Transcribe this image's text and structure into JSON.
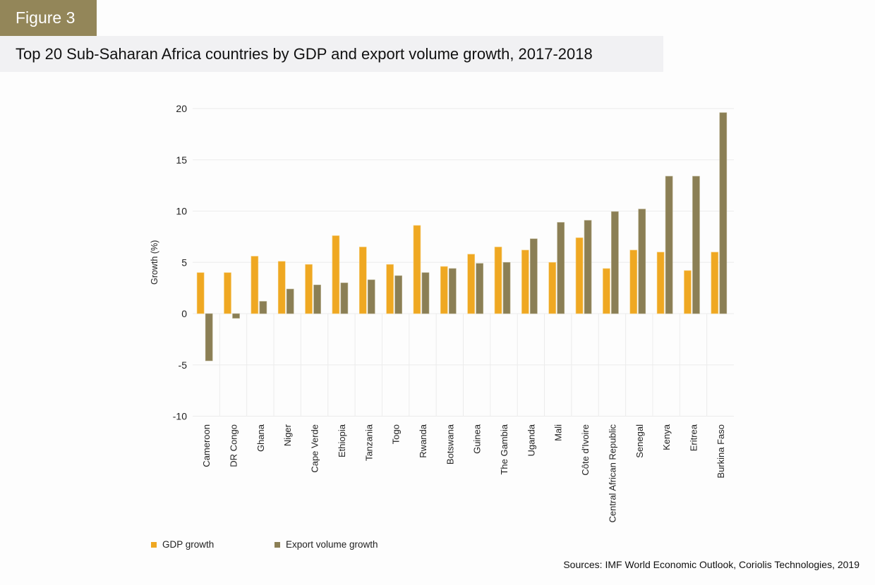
{
  "figure_label": "Figure 3",
  "title": "Top 20 Sub-Saharan Africa countries by GDP and export volume growth, 2017-2018",
  "source": "Sources: IMF World Economic Outlook, Coriolis Technologies, 2019",
  "colors": {
    "gdp": "#EFA822",
    "export": "#8B7F55",
    "header": "#938659",
    "grid": "#ececec"
  },
  "legend": [
    {
      "name": "GDP growth",
      "color": "#EFA822"
    },
    {
      "name": "Export volume growth",
      "color": "#8B7F55"
    }
  ],
  "chart_data": {
    "type": "bar",
    "title": "Top 20 Sub-Saharan Africa countries by GDP and export volume growth, 2017-2018",
    "xlabel": "",
    "ylabel": "Growth (%)",
    "ylim": [
      -10,
      20
    ],
    "yticks": [
      20,
      15,
      10,
      5,
      0,
      -5,
      -10
    ],
    "grid": true,
    "legend_position": "bottom-left",
    "categories": [
      "Cameroon",
      "DR Congo",
      "Ghana",
      "Niger",
      "Cape Verde",
      "Ethiopia",
      "Tanzania",
      "Togo",
      "Rwanda",
      "Botswana",
      "Guinea",
      "The Gambia",
      "Uganda",
      "Mali",
      "Côte d'Ivoire",
      "Central African Republic",
      "Senegal",
      "Kenya",
      "Eritrea",
      "Burkina Faso"
    ],
    "series": [
      {
        "name": "GDP growth",
        "values": [
          4.0,
          4.0,
          5.6,
          5.1,
          4.8,
          7.6,
          6.5,
          4.8,
          8.6,
          4.6,
          5.8,
          6.5,
          6.2,
          5.0,
          7.4,
          4.4,
          6.2,
          6.0,
          4.2,
          6.0
        ]
      },
      {
        "name": "Export volume growth",
        "values": [
          -4.6,
          -0.45,
          1.2,
          2.4,
          2.8,
          3.0,
          3.3,
          3.7,
          4.0,
          4.4,
          4.9,
          5.0,
          7.3,
          8.9,
          9.1,
          9.95,
          10.2,
          13.4,
          13.4,
          19.6
        ]
      }
    ]
  }
}
